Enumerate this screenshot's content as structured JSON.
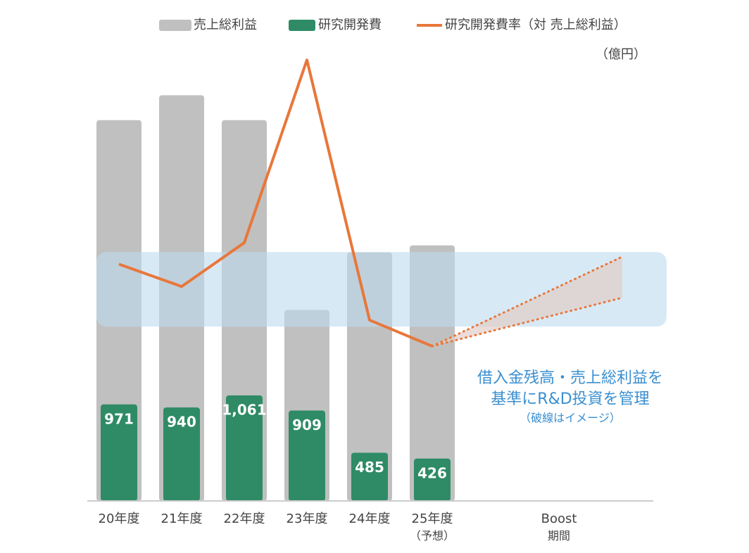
{
  "chart_data": {
    "type": "bar",
    "unit": "（億円）",
    "categories": [
      "20年度",
      "21年度",
      "22年度",
      "23年度",
      "24年度",
      "25年度\n（予想）",
      "Boost\n期間"
    ],
    "series": [
      {
        "name": "売上総利益",
        "color": "#c0c0c0",
        "values": [
          3830,
          4080,
          3830,
          1920,
          2500,
          2570,
          null
        ]
      },
      {
        "name": "研究開発費",
        "color": "#2e8b66",
        "values": [
          971,
          940,
          1061,
          909,
          485,
          426,
          null
        ],
        "value_labels": [
          "971",
          "940",
          "1,061",
          "909",
          "485",
          "426",
          null
        ]
      },
      {
        "name": "研究開発費率（対 売上総利益）",
        "color": "#e8773a",
        "type": "line",
        "axis": "y2",
        "values": [
          25.4,
          23.0,
          27.7,
          47.3,
          19.4,
          16.6,
          null
        ]
      }
    ],
    "target_band": [
      18.7,
      26.7
    ],
    "boost_range": [
      21.8,
      26.2
    ],
    "annotation": [
      "借入金残高・売上総利益を",
      "基準にR&D投資を管理",
      "（破線はイメージ）"
    ],
    "ylim": [
      0,
      4500
    ],
    "y2lim": [
      0,
      48
    ]
  }
}
